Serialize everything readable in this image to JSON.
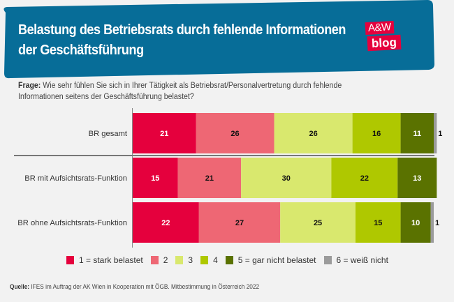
{
  "header": {
    "title_line1": "Belastung des Betriebsrats durch fehlende Informationen",
    "title_line2": "der Geschäftsführung",
    "logo_top": "A&W",
    "logo_bottom": "blog",
    "banner_color": "#076d98",
    "logo_color": "#e5003d"
  },
  "question": {
    "label": "Frage:",
    "text_line1": " Wie sehr fühlen Sie sich in Ihrer Tätigkeit als Betriebsrat/Personalvertretung durch fehlende",
    "text_line2": "Informationen seitens der Geschäftsführung belastet?"
  },
  "chart_data": {
    "type": "bar",
    "orientation": "horizontal",
    "stacked": true,
    "unit": "percent",
    "categories": [
      "BR gesamt",
      "BR mit Aufsichtsrats-Funktion",
      "BR ohne Aufsichtsrats-Funktion"
    ],
    "series": [
      {
        "name": "1 = stark belastet",
        "color": "#e5003d",
        "label_color": "#ffffff",
        "values": [
          21,
          15,
          22
        ]
      },
      {
        "name": "2",
        "color": "#ee6774",
        "label_color": "#111111",
        "values": [
          26,
          21,
          27
        ]
      },
      {
        "name": "3",
        "color": "#d9e86e",
        "label_color": "#111111",
        "values": [
          26,
          30,
          25
        ]
      },
      {
        "name": "4",
        "color": "#afc800",
        "label_color": "#111111",
        "values": [
          16,
          22,
          15
        ]
      },
      {
        "name": "5 = gar nicht belastet",
        "color": "#5a7200",
        "label_color": "#ffffff",
        "values": [
          11,
          13,
          10
        ]
      },
      {
        "name": "6 = weiß nicht",
        "color": "#9b9b9b",
        "label_color": "#111111",
        "values": [
          1,
          0,
          1
        ]
      }
    ],
    "xlim": [
      0,
      101
    ],
    "grid": false,
    "separator_after_category": 0,
    "legend_position": "bottom"
  },
  "legend": {
    "items": [
      {
        "label": "1 = stark belastet",
        "color": "#e5003d"
      },
      {
        "label": "2",
        "color": "#ee6774"
      },
      {
        "label": "3",
        "color": "#d9e86e"
      },
      {
        "label": "4",
        "color": "#afc800"
      },
      {
        "label": "5 = gar nicht belastet",
        "color": "#5a7200"
      },
      {
        "label": "6 = weiß nicht",
        "color": "#9b9b9b"
      }
    ]
  },
  "source": {
    "label": "Quelle:",
    "text": " IFES im Auftrag der AK Wien in Kooperation mit ÖGB. Mitbestimmung in Österreich 2022"
  }
}
